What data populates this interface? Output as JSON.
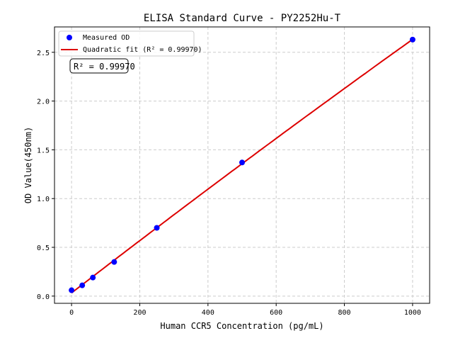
{
  "chart_data": {
    "type": "scatter",
    "title": "ELISA Standard Curve - PY2252Hu-T",
    "xlabel": "Human CCR5 Concentration (pg/mL)",
    "ylabel": "OD Value(450nm)",
    "xlim": [
      -50,
      1050
    ],
    "ylim": [
      -0.074,
      2.76
    ],
    "xticks": [
      0,
      200,
      400,
      600,
      800,
      1000
    ],
    "xtick_labels": [
      "0",
      "200",
      "400",
      "600",
      "800",
      "1000"
    ],
    "yticks": [
      0,
      0.5,
      1.0,
      1.5,
      2.0,
      2.5
    ],
    "ytick_labels": [
      "0.0",
      "0.5",
      "1.0",
      "1.5",
      "2.0",
      "2.5"
    ],
    "grid": true,
    "legend_position": "top-left",
    "series": [
      {
        "name": "Measured OD",
        "kind": "scatter",
        "color": "#0000ff",
        "x": [
          0,
          31.25,
          62.5,
          125,
          250,
          500,
          1000
        ],
        "y": [
          0.06,
          0.11,
          0.19,
          0.35,
          0.7,
          1.37,
          2.63
        ]
      },
      {
        "name": "Quadratic fit (R² = 0.99970)",
        "kind": "line",
        "color": "#dd0000",
        "fit": "quadratic"
      }
    ],
    "annotation": "R² = 0.99970"
  }
}
